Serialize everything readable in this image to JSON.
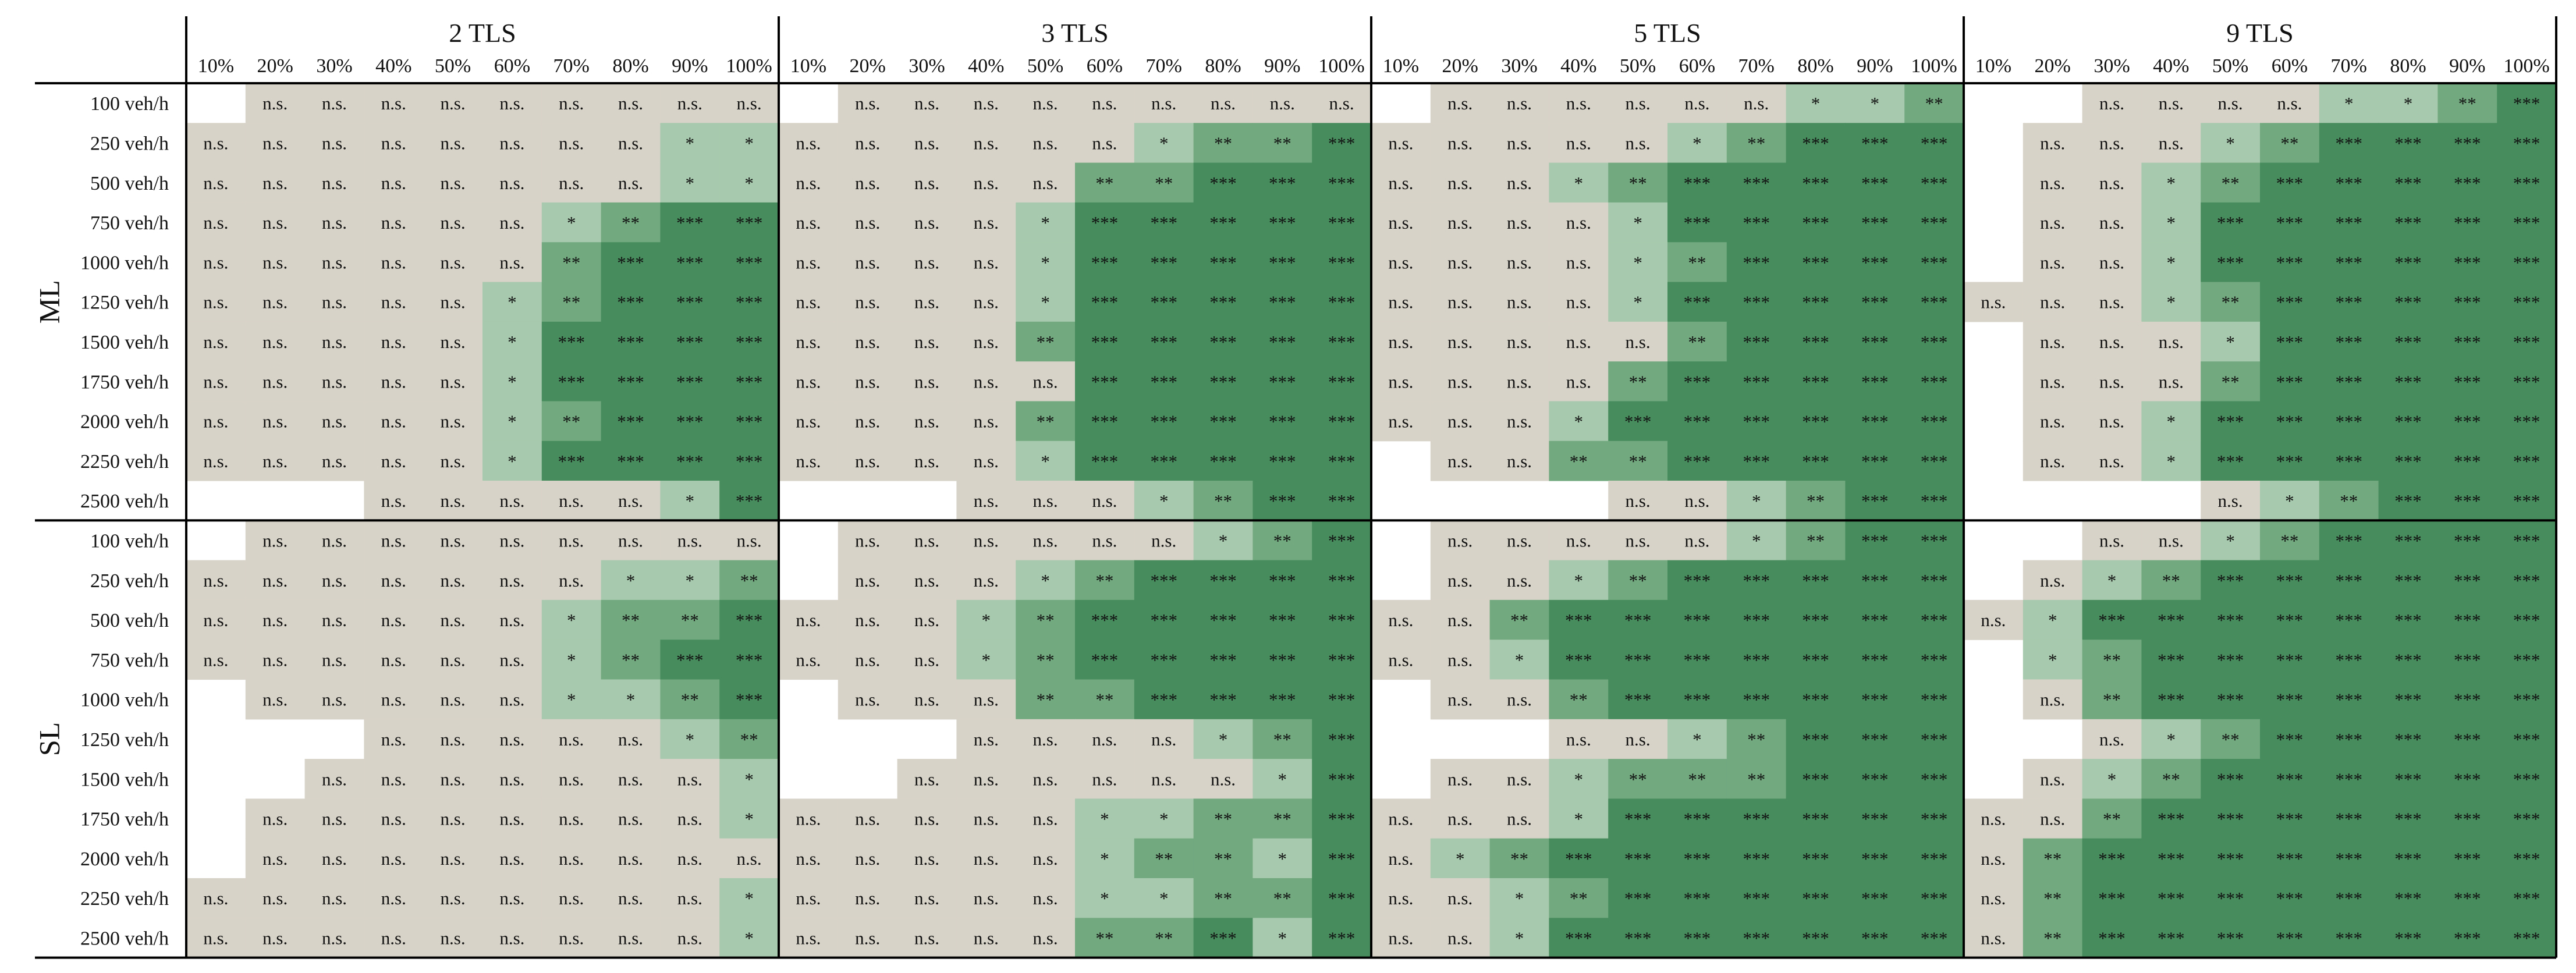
{
  "chart_data": {
    "type": "heatmap",
    "title": "",
    "levels": [
      "10%",
      "20%",
      "30%",
      "40%",
      "50%",
      "60%",
      "70%",
      "80%",
      "90%",
      "100%"
    ],
    "panels": [
      {
        "name": "2 TLS"
      },
      {
        "name": "3 TLS"
      },
      {
        "name": "5 TLS"
      },
      {
        "name": "9 TLS"
      }
    ],
    "groups": [
      {
        "name": "ML",
        "rows": [
          "100 veh/h",
          "250 veh/h",
          "500 veh/h",
          "750 veh/h",
          "1000 veh/h",
          "1250 veh/h",
          "1500 veh/h",
          "1750 veh/h",
          "2000 veh/h",
          "2250 veh/h",
          "2500 veh/h"
        ]
      },
      {
        "name": "SL",
        "rows": [
          "100 veh/h",
          "250 veh/h",
          "500 veh/h",
          "750 veh/h",
          "1000 veh/h",
          "1250 veh/h",
          "1500 veh/h",
          "1750 veh/h",
          "2000 veh/h",
          "2250 veh/h",
          "2500 veh/h"
        ]
      }
    ],
    "colors": {
      "ns": "#d8d3c8",
      "one_star": "#a7c9ad",
      "two_star": "#72a97f",
      "three_star": "#478c5d",
      "empty": "#ffffff"
    },
    "legend_codes": {
      "0": "n.s.",
      "1": "*",
      "2": "**",
      "3": "***",
      "-1": ""
    },
    "cells": [
      [
        [
          -1,
          0,
          0,
          0,
          0,
          0,
          0,
          0,
          0,
          0
        ],
        [
          0,
          0,
          0,
          0,
          0,
          0,
          0,
          0,
          1,
          1
        ],
        [
          0,
          0,
          0,
          0,
          0,
          0,
          0,
          0,
          1,
          1
        ],
        [
          0,
          0,
          0,
          0,
          0,
          0,
          1,
          2,
          3,
          3
        ],
        [
          0,
          0,
          0,
          0,
          0,
          0,
          2,
          3,
          3,
          3
        ],
        [
          0,
          0,
          0,
          0,
          0,
          1,
          2,
          3,
          3,
          3
        ],
        [
          0,
          0,
          0,
          0,
          0,
          1,
          3,
          3,
          3,
          3
        ],
        [
          0,
          0,
          0,
          0,
          0,
          1,
          3,
          3,
          3,
          3
        ],
        [
          0,
          0,
          0,
          0,
          0,
          1,
          2,
          3,
          3,
          3
        ],
        [
          0,
          0,
          0,
          0,
          0,
          1,
          3,
          3,
          3,
          3
        ],
        [
          -1,
          -1,
          -1,
          0,
          0,
          0,
          0,
          0,
          1,
          3
        ],
        [
          -1,
          0,
          0,
          0,
          0,
          0,
          0,
          0,
          0,
          0
        ],
        [
          0,
          0,
          0,
          0,
          0,
          0,
          0,
          1,
          1,
          2
        ],
        [
          0,
          0,
          0,
          0,
          0,
          0,
          1,
          2,
          2,
          3
        ],
        [
          0,
          0,
          0,
          0,
          0,
          0,
          1,
          2,
          3,
          3
        ],
        [
          -1,
          0,
          0,
          0,
          0,
          0,
          1,
          1,
          2,
          3
        ],
        [
          -1,
          -1,
          -1,
          0,
          0,
          0,
          0,
          0,
          1,
          2
        ],
        [
          -1,
          -1,
          0,
          0,
          0,
          0,
          0,
          0,
          0,
          1
        ],
        [
          -1,
          0,
          0,
          0,
          0,
          0,
          0,
          0,
          0,
          1
        ],
        [
          -1,
          0,
          0,
          0,
          0,
          0,
          0,
          0,
          0,
          0
        ],
        [
          0,
          0,
          0,
          0,
          0,
          0,
          0,
          0,
          0,
          1
        ],
        [
          0,
          0,
          0,
          0,
          0,
          0,
          0,
          0,
          0,
          1
        ]
      ],
      [
        [
          -1,
          0,
          0,
          0,
          0,
          0,
          0,
          0,
          0,
          0
        ],
        [
          0,
          0,
          0,
          0,
          0,
          0,
          1,
          2,
          2,
          3
        ],
        [
          0,
          0,
          0,
          0,
          0,
          2,
          2,
          3,
          3,
          3
        ],
        [
          0,
          0,
          0,
          0,
          1,
          3,
          3,
          3,
          3,
          3
        ],
        [
          0,
          0,
          0,
          0,
          1,
          3,
          3,
          3,
          3,
          3
        ],
        [
          0,
          0,
          0,
          0,
          1,
          3,
          3,
          3,
          3,
          3
        ],
        [
          0,
          0,
          0,
          0,
          2,
          3,
          3,
          3,
          3,
          3
        ],
        [
          0,
          0,
          0,
          0,
          0,
          3,
          3,
          3,
          3,
          3
        ],
        [
          0,
          0,
          0,
          0,
          2,
          3,
          3,
          3,
          3,
          3
        ],
        [
          0,
          0,
          0,
          0,
          1,
          3,
          3,
          3,
          3,
          3
        ],
        [
          -1,
          -1,
          -1,
          0,
          0,
          0,
          1,
          2,
          3,
          3
        ],
        [
          -1,
          0,
          0,
          0,
          0,
          0,
          0,
          1,
          2,
          3
        ],
        [
          -1,
          0,
          0,
          0,
          1,
          2,
          3,
          3,
          3,
          3
        ],
        [
          0,
          0,
          0,
          1,
          2,
          3,
          3,
          3,
          3,
          3
        ],
        [
          0,
          0,
          0,
          1,
          2,
          3,
          3,
          3,
          3,
          3
        ],
        [
          -1,
          0,
          0,
          0,
          2,
          2,
          3,
          3,
          3,
          3
        ],
        [
          -1,
          -1,
          -1,
          0,
          0,
          0,
          0,
          1,
          2,
          3
        ],
        [
          -1,
          -1,
          0,
          0,
          0,
          0,
          0,
          0,
          1,
          3
        ],
        [
          0,
          0,
          0,
          0,
          0,
          1,
          1,
          2,
          2,
          3
        ],
        [
          0,
          0,
          0,
          0,
          0,
          1,
          2,
          2,
          1,
          3
        ],
        [
          0,
          0,
          0,
          0,
          0,
          1,
          1,
          2,
          2,
          3
        ],
        [
          0,
          0,
          0,
          0,
          0,
          2,
          2,
          3,
          1,
          3
        ]
      ],
      [
        [
          -1,
          0,
          0,
          0,
          0,
          0,
          0,
          1,
          1,
          2
        ],
        [
          0,
          0,
          0,
          0,
          0,
          1,
          2,
          3,
          3,
          3
        ],
        [
          0,
          0,
          0,
          1,
          2,
          3,
          3,
          3,
          3,
          3
        ],
        [
          0,
          0,
          0,
          0,
          1,
          3,
          3,
          3,
          3,
          3
        ],
        [
          0,
          0,
          0,
          0,
          1,
          2,
          3,
          3,
          3,
          3
        ],
        [
          0,
          0,
          0,
          0,
          1,
          3,
          3,
          3,
          3,
          3
        ],
        [
          0,
          0,
          0,
          0,
          0,
          2,
          3,
          3,
          3,
          3
        ],
        [
          0,
          0,
          0,
          0,
          2,
          3,
          3,
          3,
          3,
          3
        ],
        [
          0,
          0,
          0,
          1,
          3,
          3,
          3,
          3,
          3,
          3
        ],
        [
          -1,
          0,
          0,
          2,
          2,
          3,
          3,
          3,
          3,
          3
        ],
        [
          -1,
          -1,
          -1,
          -1,
          0,
          0,
          1,
          2,
          3,
          3
        ],
        [
          -1,
          0,
          0,
          0,
          0,
          0,
          1,
          2,
          3,
          3
        ],
        [
          -1,
          0,
          0,
          1,
          2,
          3,
          3,
          3,
          3,
          3
        ],
        [
          0,
          0,
          2,
          3,
          3,
          3,
          3,
          3,
          3,
          3
        ],
        [
          0,
          0,
          1,
          3,
          3,
          3,
          3,
          3,
          3,
          3
        ],
        [
          -1,
          0,
          0,
          2,
          3,
          3,
          3,
          3,
          3,
          3
        ],
        [
          -1,
          -1,
          -1,
          0,
          0,
          1,
          2,
          3,
          3,
          3
        ],
        [
          -1,
          0,
          0,
          1,
          2,
          2,
          2,
          3,
          3,
          3
        ],
        [
          0,
          0,
          0,
          1,
          3,
          3,
          3,
          3,
          3,
          3
        ],
        [
          0,
          1,
          2,
          3,
          3,
          3,
          3,
          3,
          3,
          3
        ],
        [
          0,
          0,
          1,
          2,
          3,
          3,
          3,
          3,
          3,
          3
        ],
        [
          0,
          0,
          1,
          3,
          3,
          3,
          3,
          3,
          3,
          3
        ]
      ],
      [
        [
          -1,
          -1,
          0,
          0,
          0,
          0,
          1,
          1,
          2,
          3
        ],
        [
          -1,
          0,
          0,
          0,
          1,
          2,
          3,
          3,
          3,
          3
        ],
        [
          -1,
          0,
          0,
          1,
          2,
          3,
          3,
          3,
          3,
          3
        ],
        [
          -1,
          0,
          0,
          1,
          3,
          3,
          3,
          3,
          3,
          3
        ],
        [
          -1,
          0,
          0,
          1,
          3,
          3,
          3,
          3,
          3,
          3
        ],
        [
          0,
          0,
          0,
          1,
          2,
          3,
          3,
          3,
          3,
          3
        ],
        [
          -1,
          0,
          0,
          0,
          1,
          3,
          3,
          3,
          3,
          3
        ],
        [
          -1,
          0,
          0,
          0,
          2,
          3,
          3,
          3,
          3,
          3
        ],
        [
          -1,
          0,
          0,
          1,
          3,
          3,
          3,
          3,
          3,
          3
        ],
        [
          -1,
          0,
          0,
          1,
          3,
          3,
          3,
          3,
          3,
          3
        ],
        [
          -1,
          -1,
          -1,
          -1,
          0,
          1,
          2,
          3,
          3,
          3
        ],
        [
          -1,
          -1,
          0,
          0,
          1,
          2,
          3,
          3,
          3,
          3
        ],
        [
          -1,
          0,
          1,
          2,
          3,
          3,
          3,
          3,
          3,
          3
        ],
        [
          0,
          1,
          3,
          3,
          3,
          3,
          3,
          3,
          3,
          3
        ],
        [
          -1,
          1,
          2,
          3,
          3,
          3,
          3,
          3,
          3,
          3
        ],
        [
          -1,
          0,
          2,
          3,
          3,
          3,
          3,
          3,
          3,
          3
        ],
        [
          -1,
          -1,
          0,
          1,
          2,
          3,
          3,
          3,
          3,
          3
        ],
        [
          -1,
          0,
          1,
          2,
          3,
          3,
          3,
          3,
          3,
          3
        ],
        [
          0,
          0,
          2,
          3,
          3,
          3,
          3,
          3,
          3,
          3
        ],
        [
          0,
          2,
          3,
          3,
          3,
          3,
          3,
          3,
          3,
          3
        ],
        [
          0,
          2,
          3,
          3,
          3,
          3,
          3,
          3,
          3,
          3
        ],
        [
          0,
          2,
          3,
          3,
          3,
          3,
          3,
          3,
          3,
          3
        ]
      ]
    ]
  }
}
